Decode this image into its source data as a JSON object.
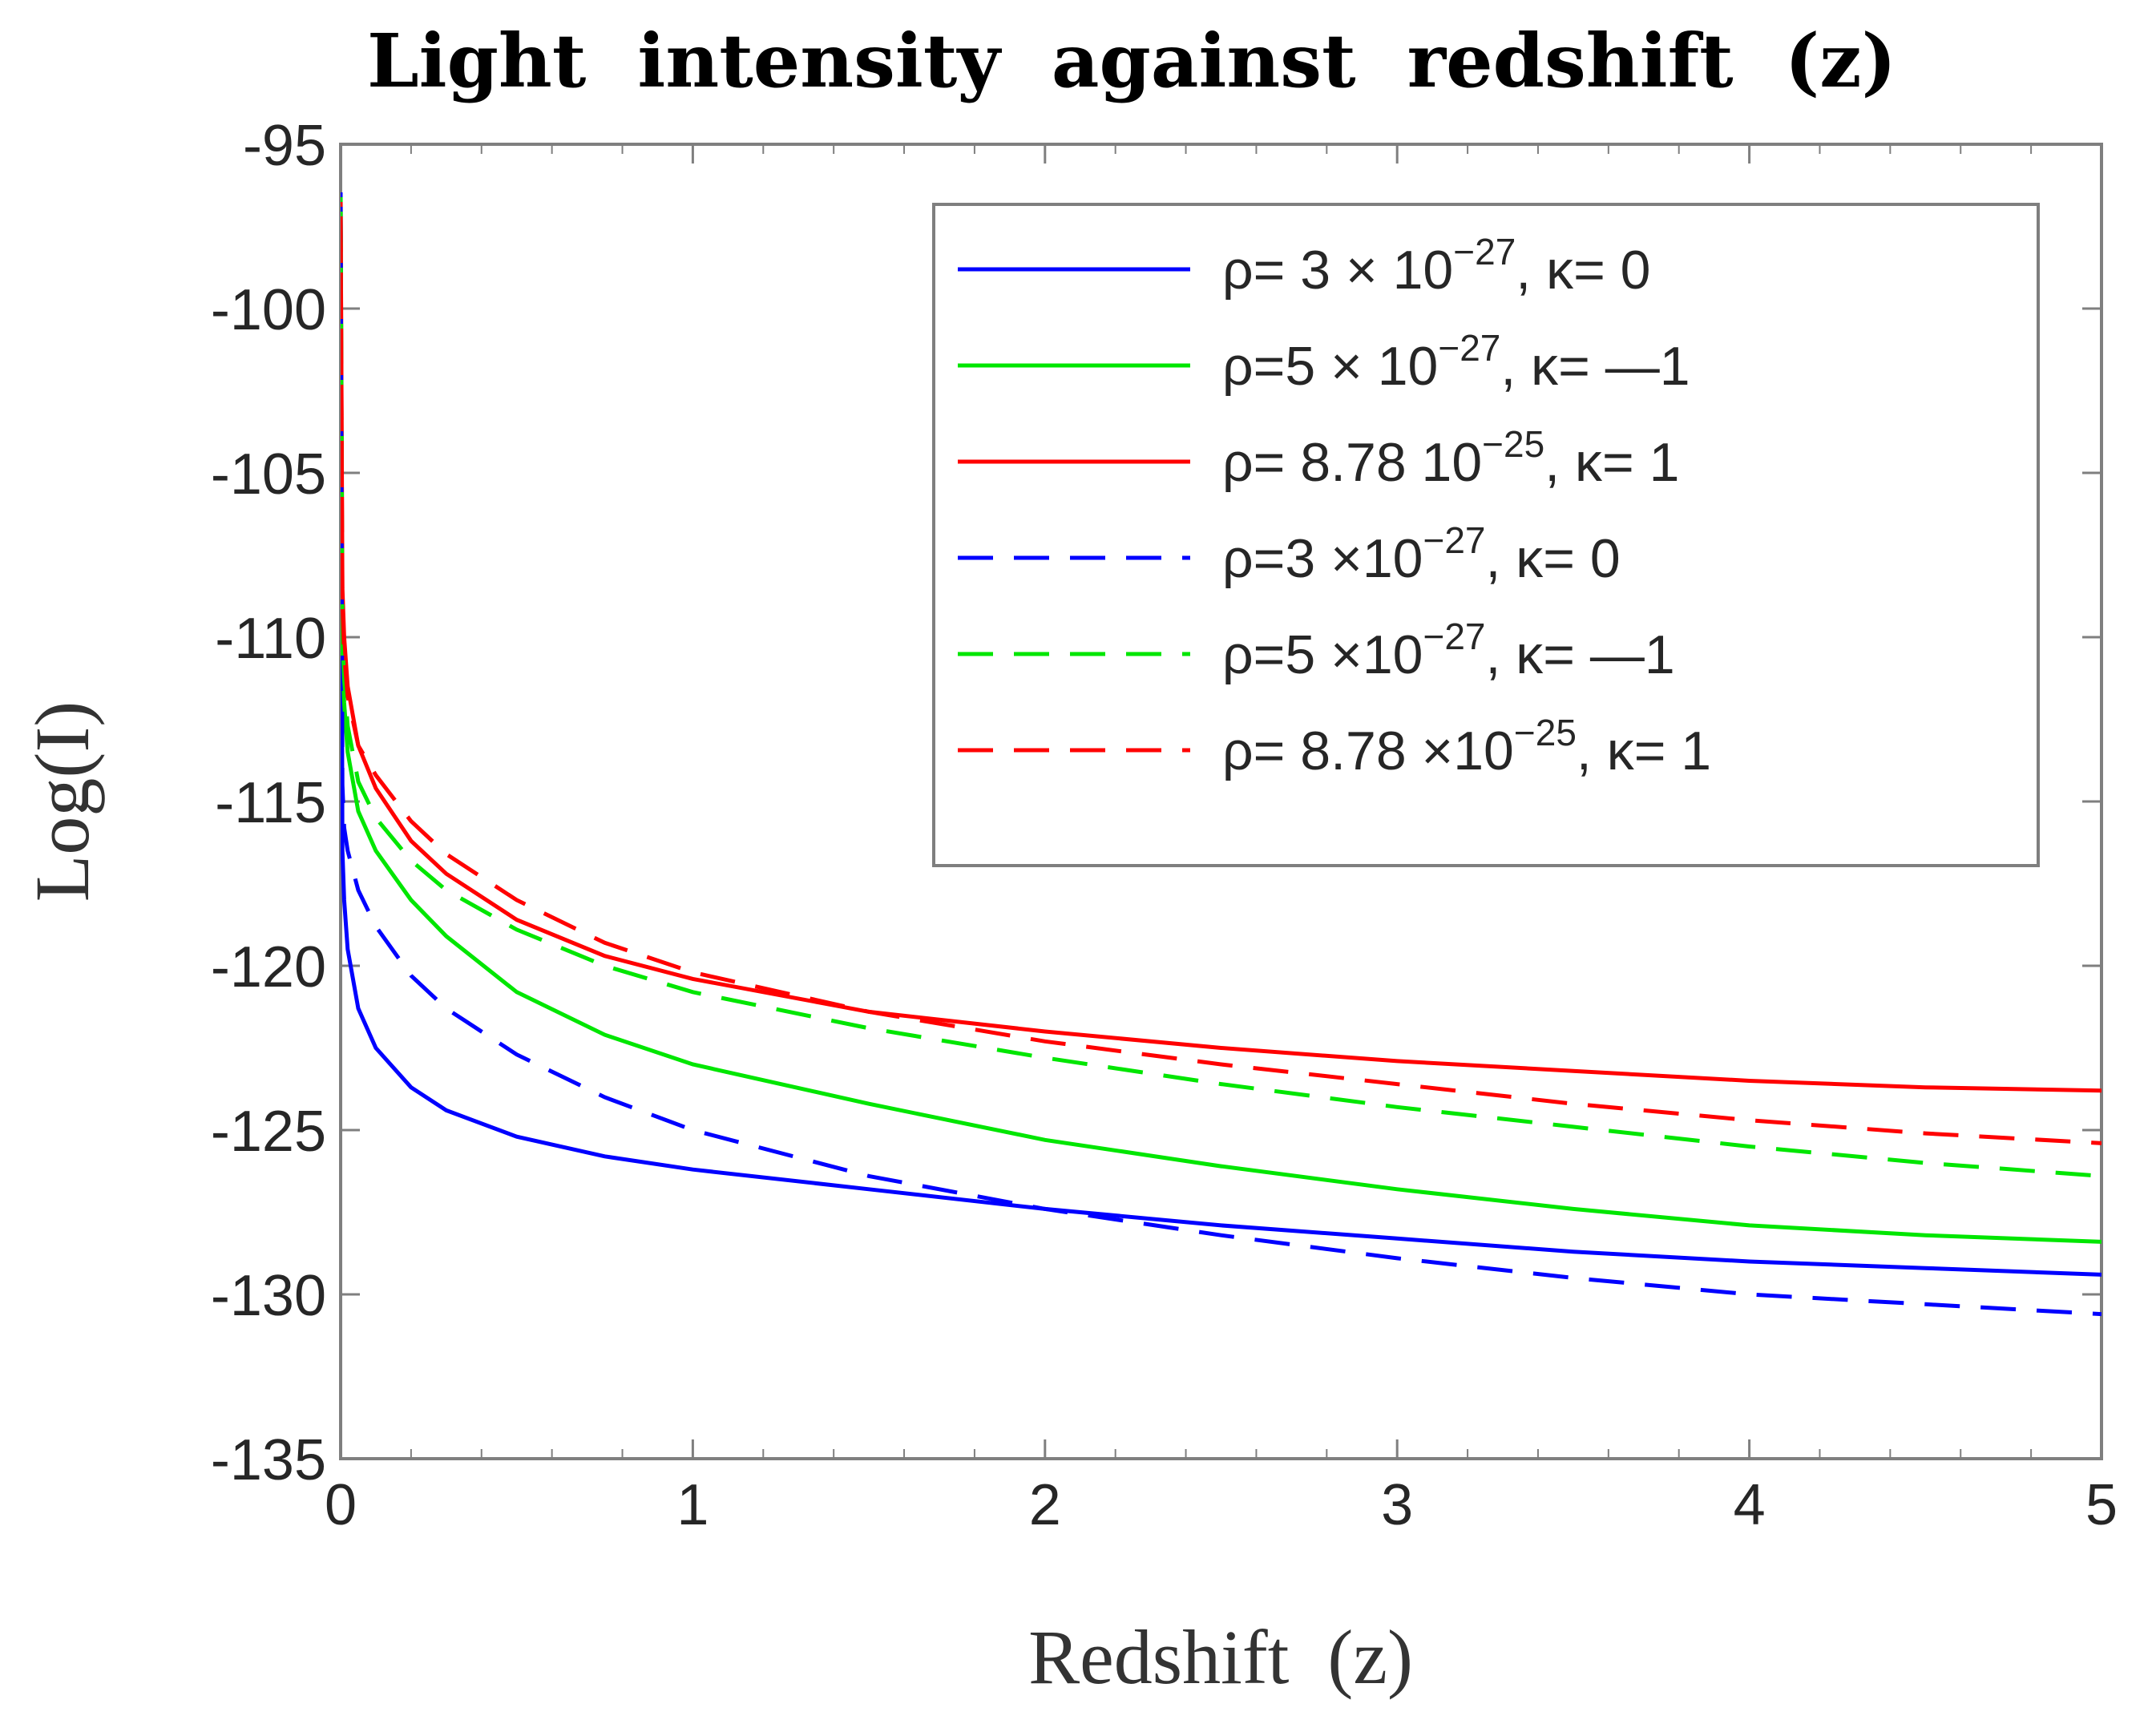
{
  "chart_data": {
    "type": "line",
    "title": "Light  intensity  against  redshift  (z)",
    "xlabel": "Redshift  (z)",
    "ylabel": "Log(I)",
    "xlim": [
      0,
      5
    ],
    "ylim": [
      -135,
      -95
    ],
    "xticks": [
      0,
      1,
      2,
      3,
      4,
      5
    ],
    "yticks": [
      -95,
      -100,
      -105,
      -110,
      -115,
      -120,
      -125,
      -130,
      -135
    ],
    "xtick_labels": [
      "0",
      "1",
      "2",
      "3",
      "4",
      "5"
    ],
    "ytick_labels": [
      "-95",
      "-100",
      "-105",
      "-110",
      "-115",
      "-120",
      "-125",
      "-130",
      "-135"
    ],
    "legend_position": "top-right",
    "x": [
      0.005,
      0.01,
      0.02,
      0.05,
      0.1,
      0.2,
      0.3,
      0.5,
      0.75,
      1,
      1.5,
      2,
      2.5,
      3,
      3.5,
      4,
      4.5,
      5
    ],
    "series": [
      {
        "name": "ρ= 3 × 10^−27, κ= 0",
        "legend": {
          "pre": "ρ= 3 × 10",
          "sup": "−27",
          "post": ", κ= 0"
        },
        "color": "#0000ff",
        "dash": "solid",
        "values": [
          -116.5,
          -118.0,
          -119.5,
          -121.3,
          -122.5,
          -123.7,
          -124.4,
          -125.2,
          -125.8,
          -126.2,
          -126.8,
          -127.4,
          -127.9,
          -128.3,
          -128.7,
          -129.0,
          -129.2,
          -129.4
        ]
      },
      {
        "name": "ρ=5 × 10^−27, κ= —1",
        "legend": {
          "pre": "ρ=5 × 10",
          "sup": "−27",
          "post": ", κ= —1"
        },
        "color": "#00e600",
        "dash": "solid",
        "values": [
          -110.5,
          -112.0,
          -113.5,
          -115.3,
          -116.5,
          -118.0,
          -119.1,
          -120.8,
          -122.1,
          -123.0,
          -124.2,
          -125.3,
          -126.1,
          -126.8,
          -127.4,
          -127.9,
          -128.2,
          -128.4
        ]
      },
      {
        "name": "ρ= 8.78 10^−25, κ= 1",
        "legend": {
          "pre": "ρ= 8.78 10",
          "sup": "−25",
          "post": ", κ= 1"
        },
        "color": "#ff0000",
        "dash": "solid",
        "values": [
          -108.5,
          -110.0,
          -111.5,
          -113.3,
          -114.6,
          -116.2,
          -117.2,
          -118.6,
          -119.7,
          -120.4,
          -121.4,
          -122.0,
          -122.5,
          -122.9,
          -123.2,
          -123.5,
          -123.7,
          -123.8
        ]
      },
      {
        "name": "ρ=3 ×10^−27, κ= 0",
        "legend": {
          "pre": "ρ=3 ×10",
          "sup": "−27",
          "post": ", κ= 0"
        },
        "color": "#0000ff",
        "dash": "dashed",
        "values": [
          -114.5,
          -115.8,
          -116.5,
          -117.7,
          -118.8,
          -120.3,
          -121.3,
          -122.7,
          -124.0,
          -125.0,
          -126.4,
          -127.4,
          -128.2,
          -128.9,
          -129.5,
          -130.0,
          -130.3,
          -130.6
        ]
      },
      {
        "name": "ρ=5 ×10^−27, κ= —1",
        "legend": {
          "pre": "ρ=5 ×10",
          "sup": "−27",
          "post": ", κ= —1"
        },
        "color": "#00e600",
        "dash": "dashed",
        "values": [
          -110.0,
          -111.3,
          -112.7,
          -114.4,
          -115.5,
          -116.8,
          -117.7,
          -118.9,
          -120.0,
          -120.8,
          -121.9,
          -122.8,
          -123.6,
          -124.3,
          -124.9,
          -125.5,
          -126.0,
          -126.4
        ]
      },
      {
        "name": "ρ= 8.78 ×10^−25, κ= 1",
        "legend": {
          "pre": "ρ= 8.78 ×10",
          "sup": "−25",
          "post": ", κ= 1"
        },
        "color": "#ff0000",
        "dash": "dashed",
        "values": [
          -109.0,
          -110.5,
          -111.8,
          -113.3,
          -114.2,
          -115.6,
          -116.6,
          -118.0,
          -119.3,
          -120.2,
          -121.4,
          -122.3,
          -123.0,
          -123.6,
          -124.2,
          -124.7,
          -125.1,
          -125.4
        ]
      }
    ]
  }
}
